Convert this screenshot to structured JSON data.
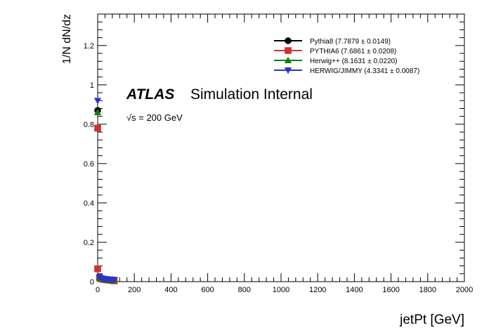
{
  "chart_data": {
    "type": "scatter",
    "xlabel": "jetPt [GeV]",
    "ylabel": "1/N dN/dz",
    "xlim": [
      0,
      2000
    ],
    "ylim": [
      0,
      1.36
    ],
    "x_ticks": [
      "0",
      "200",
      "400",
      "600",
      "800",
      "1000",
      "1200",
      "1400",
      "1600",
      "1800",
      "2000"
    ],
    "y_ticks": [
      "0",
      "0.2",
      "0.4",
      "0.6",
      "0.8",
      "1",
      "1.2"
    ],
    "x_tick_values": [
      0,
      200,
      400,
      600,
      800,
      1000,
      1200,
      1400,
      1600,
      1800,
      2000
    ],
    "y_tick_values": [
      0,
      0.2,
      0.4,
      0.6,
      0.8,
      1.0,
      1.2
    ],
    "grid": false,
    "legend_position": "top-right",
    "annotation": {
      "atlas": "ATLAS",
      "label": "Simulation Internal",
      "energy_prefix": "√s",
      "energy_suffix": " = 200 GeV"
    },
    "series": [
      {
        "name": "Pythia8 (7.7879 ± 0.0149)",
        "color": "#000000",
        "marker": "circle",
        "x": [
          0,
          10,
          20,
          30,
          40,
          50,
          60,
          70,
          80,
          90
        ],
        "y": [
          0.87,
          0.021,
          0.016,
          0.012,
          0.01,
          0.009,
          0.008,
          0.007,
          0.006,
          0.005
        ]
      },
      {
        "name": "PYTHIA6 (7.6861 ± 0.0208)",
        "color": "#d0312d",
        "marker": "square",
        "x": [
          0,
          0,
          10,
          20,
          30,
          40,
          50,
          60,
          70,
          80,
          90
        ],
        "y": [
          0.78,
          0.065,
          0.02,
          0.015,
          0.012,
          0.01,
          0.009,
          0.008,
          0.007,
          0.006,
          0.004
        ]
      },
      {
        "name": "Herwig++ (8.1631 ± 0.0220)",
        "color": "#157a15",
        "marker": "triangle-up",
        "x": [
          0,
          10,
          20,
          30,
          40,
          50,
          60,
          70,
          80,
          90
        ],
        "y": [
          0.86,
          0.021,
          0.016,
          0.013,
          0.011,
          0.009,
          0.008,
          0.007,
          0.006,
          0.005
        ]
      },
      {
        "name": "HERWIG/JIMMY (4.3341 ± 0.0087)",
        "color": "#2b35c8",
        "marker": "triangle-down",
        "x": [
          0,
          10,
          20,
          30,
          40,
          50,
          60,
          70,
          80,
          90
        ],
        "y": [
          0.92,
          0.024,
          0.018,
          0.015,
          0.014,
          0.013,
          0.012,
          0.012,
          0.011,
          0.01
        ]
      }
    ]
  }
}
